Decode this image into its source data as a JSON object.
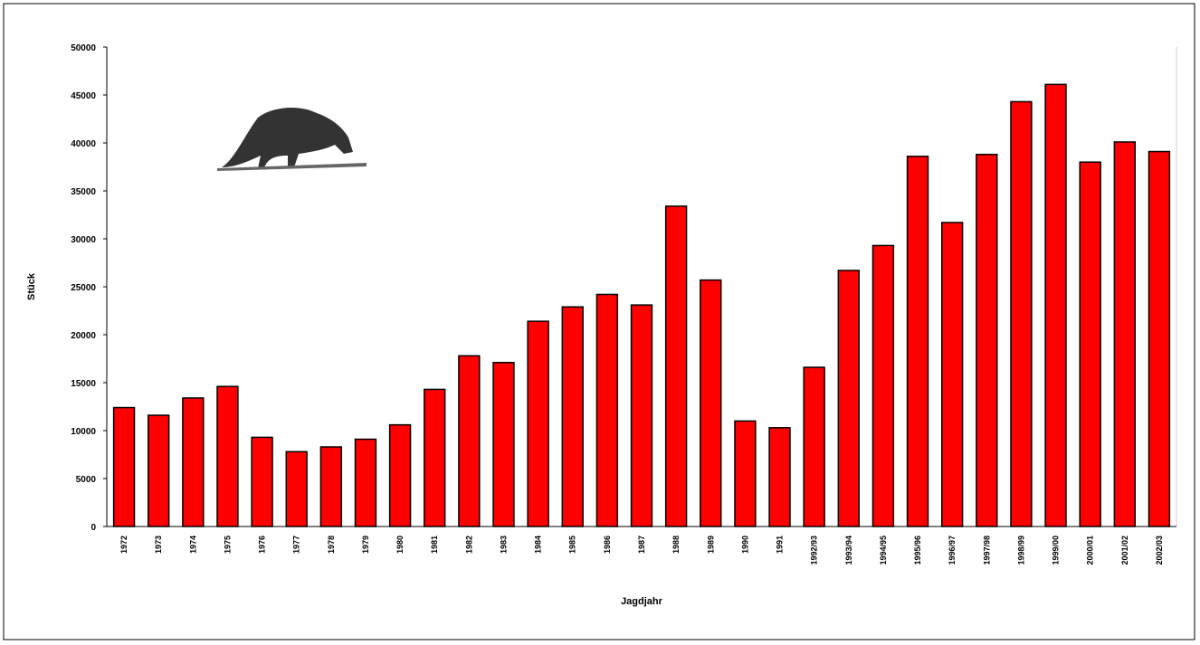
{
  "chart_data": {
    "type": "bar",
    "categories": [
      "1972",
      "1973",
      "1974",
      "1975",
      "1976",
      "1977",
      "1978",
      "1979",
      "1980",
      "1981",
      "1982",
      "1983",
      "1984",
      "1985",
      "1986",
      "1987",
      "1988",
      "1989",
      "1990",
      "1991",
      "1992/93",
      "1993/94",
      "1994/95",
      "1995/96",
      "1996/97",
      "1997/98",
      "1998/99",
      "1999/00",
      "2000/01",
      "2001/02",
      "2002/03"
    ],
    "values": [
      12400,
      11600,
      13400,
      14600,
      9300,
      7800,
      8300,
      9100,
      10600,
      14300,
      17800,
      17100,
      21400,
      22900,
      24200,
      23100,
      33400,
      25700,
      11000,
      10300,
      16600,
      26700,
      29300,
      38600,
      31700,
      38800,
      44300,
      46100,
      38000,
      40100,
      39100
    ],
    "color": "#ff0000",
    "ylim": [
      0,
      50000
    ],
    "yticks": [
      0,
      5000,
      10000,
      15000,
      20000,
      25000,
      30000,
      35000,
      40000,
      45000,
      50000
    ],
    "y_label": "Stück",
    "x_label": "Jagdjahr",
    "grid": false
  }
}
